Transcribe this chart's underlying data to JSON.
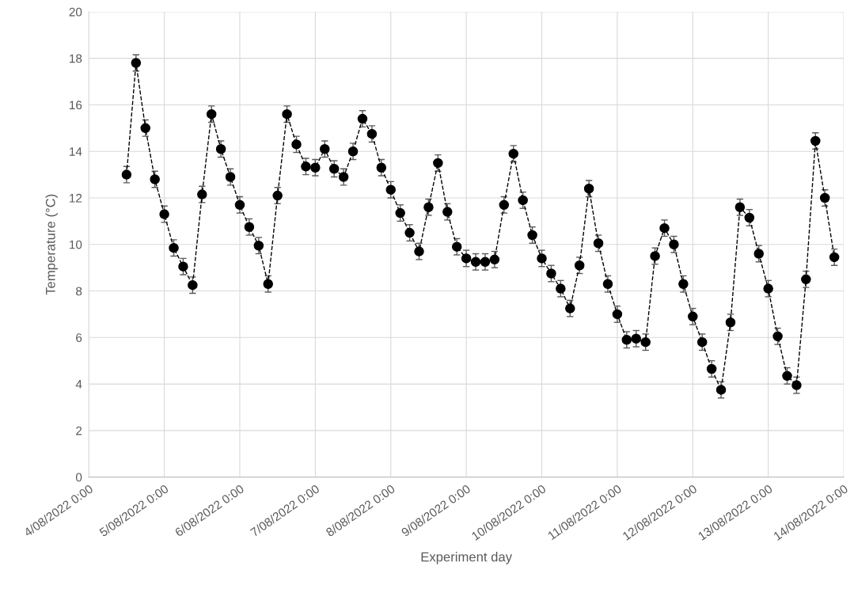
{
  "chart_data": {
    "type": "line",
    "xlabel": "Experiment day",
    "ylabel": "Temperature (°C)",
    "x": [
      "2022-08-04T12:00",
      "2022-08-04T15:00",
      "2022-08-04T18:00",
      "2022-08-04T21:00",
      "2022-08-05T00:00",
      "2022-08-05T03:00",
      "2022-08-05T06:00",
      "2022-08-05T09:00",
      "2022-08-05T12:00",
      "2022-08-05T15:00",
      "2022-08-05T18:00",
      "2022-08-05T21:00",
      "2022-08-06T00:00",
      "2022-08-06T03:00",
      "2022-08-06T06:00",
      "2022-08-06T09:00",
      "2022-08-06T12:00",
      "2022-08-06T15:00",
      "2022-08-06T18:00",
      "2022-08-06T21:00",
      "2022-08-07T00:00",
      "2022-08-07T03:00",
      "2022-08-07T06:00",
      "2022-08-07T09:00",
      "2022-08-07T12:00",
      "2022-08-07T15:00",
      "2022-08-07T18:00",
      "2022-08-07T21:00",
      "2022-08-08T00:00",
      "2022-08-08T03:00",
      "2022-08-08T06:00",
      "2022-08-08T09:00",
      "2022-08-08T12:00",
      "2022-08-08T15:00",
      "2022-08-08T18:00",
      "2022-08-08T21:00",
      "2022-08-09T00:00",
      "2022-08-09T03:00",
      "2022-08-09T06:00",
      "2022-08-09T09:00",
      "2022-08-09T12:00",
      "2022-08-09T15:00",
      "2022-08-09T18:00",
      "2022-08-09T21:00",
      "2022-08-10T00:00",
      "2022-08-10T03:00",
      "2022-08-10T06:00",
      "2022-08-10T09:00",
      "2022-08-10T12:00",
      "2022-08-10T15:00",
      "2022-08-10T18:00",
      "2022-08-10T21:00",
      "2022-08-11T00:00",
      "2022-08-11T03:00",
      "2022-08-11T06:00",
      "2022-08-11T09:00",
      "2022-08-11T12:00",
      "2022-08-11T15:00",
      "2022-08-11T18:00",
      "2022-08-11T21:00",
      "2022-08-12T00:00",
      "2022-08-12T03:00",
      "2022-08-12T06:00",
      "2022-08-12T09:00",
      "2022-08-12T12:00",
      "2022-08-12T15:00",
      "2022-08-12T18:00",
      "2022-08-12T21:00",
      "2022-08-13T00:00",
      "2022-08-13T03:00",
      "2022-08-13T06:00",
      "2022-08-13T09:00",
      "2022-08-13T12:00",
      "2022-08-13T15:00",
      "2022-08-13T18:00",
      "2022-08-13T21:00"
    ],
    "series": [
      {
        "color": "#000000",
        "values": [
          13.0,
          17.8,
          15.0,
          12.8,
          11.3,
          9.85,
          9.05,
          8.25,
          12.15,
          15.6,
          14.1,
          12.9,
          11.7,
          10.75,
          9.95,
          8.3,
          12.1,
          15.6,
          14.3,
          13.35,
          13.3,
          14.1,
          13.25,
          12.9,
          14.0,
          15.4,
          14.75,
          13.3,
          12.35,
          11.35,
          10.5,
          9.7,
          11.6,
          13.5,
          11.4,
          9.9,
          9.4,
          9.25,
          9.25,
          9.35,
          11.7,
          13.9,
          11.9,
          10.4,
          9.4,
          8.75,
          8.1,
          7.25,
          9.1,
          12.4,
          10.05,
          8.3,
          7.0,
          5.9,
          5.95,
          5.8,
          9.5,
          10.7,
          10.0,
          8.3,
          6.9,
          5.8,
          4.65,
          3.75,
          6.65,
          11.6,
          11.15,
          9.6,
          8.1,
          6.05,
          4.35,
          3.95,
          8.5,
          14.45,
          12.0,
          9.45
        ],
        "errors": [
          0.35,
          0.35,
          0.35,
          0.35,
          0.35,
          0.35,
          0.35,
          0.35,
          0.35,
          0.35,
          0.35,
          0.35,
          0.35,
          0.35,
          0.35,
          0.35,
          0.35,
          0.35,
          0.35,
          0.35,
          0.35,
          0.35,
          0.35,
          0.35,
          0.35,
          0.35,
          0.35,
          0.35,
          0.35,
          0.35,
          0.35,
          0.35,
          0.35,
          0.35,
          0.35,
          0.35,
          0.35,
          0.35,
          0.35,
          0.35,
          0.35,
          0.35,
          0.35,
          0.35,
          0.35,
          0.35,
          0.35,
          0.35,
          0.35,
          0.35,
          0.35,
          0.35,
          0.35,
          0.35,
          0.35,
          0.35,
          0.35,
          0.35,
          0.35,
          0.35,
          0.35,
          0.35,
          0.35,
          0.35,
          0.35,
          0.35,
          0.35,
          0.35,
          0.35,
          0.35,
          0.35,
          0.35,
          0.35,
          0.35,
          0.35,
          0.35
        ]
      }
    ],
    "xlim": [
      "2022-08-04",
      "2022-08-14"
    ],
    "xticks": [
      {
        "value": "2022-08-04",
        "label": "4/08/2022 0:00"
      },
      {
        "value": "2022-08-05",
        "label": "5/08/2022 0:00"
      },
      {
        "value": "2022-08-06",
        "label": "6/08/2022 0:00"
      },
      {
        "value": "2022-08-07",
        "label": "7/08/2022 0:00"
      },
      {
        "value": "2022-08-08",
        "label": "8/08/2022 0:00"
      },
      {
        "value": "2022-08-09",
        "label": "9/08/2022 0:00"
      },
      {
        "value": "2022-08-10",
        "label": "10/08/2022 0:00"
      },
      {
        "value": "2022-08-11",
        "label": "11/08/2022 0:00"
      },
      {
        "value": "2022-08-12",
        "label": "12/08/2022 0:00"
      },
      {
        "value": "2022-08-13",
        "label": "13/08/2022 0:00"
      },
      {
        "value": "2022-08-14",
        "label": "14/08/2022 0:00"
      }
    ],
    "ylim": [
      0,
      20
    ],
    "yticks": [
      0,
      2,
      4,
      6,
      8,
      10,
      12,
      14,
      16,
      18,
      20
    ],
    "grid": true,
    "marker": "circle",
    "line_style": "dashed"
  }
}
